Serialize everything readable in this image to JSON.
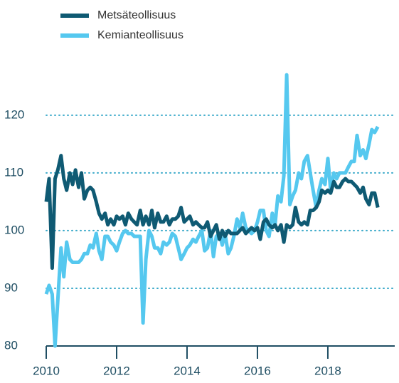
{
  "chart_data": {
    "type": "line",
    "x": [
      2010.0,
      2010.08,
      2010.17,
      2010.25,
      2010.33,
      2010.42,
      2010.5,
      2010.58,
      2010.67,
      2010.75,
      2010.83,
      2010.92,
      2011.0,
      2011.08,
      2011.17,
      2011.25,
      2011.33,
      2011.42,
      2011.5,
      2011.58,
      2011.67,
      2011.75,
      2011.83,
      2011.92,
      2012.0,
      2012.08,
      2012.17,
      2012.25,
      2012.33,
      2012.42,
      2012.5,
      2012.58,
      2012.67,
      2012.75,
      2012.83,
      2012.92,
      2013.0,
      2013.08,
      2013.17,
      2013.25,
      2013.33,
      2013.42,
      2013.5,
      2013.58,
      2013.67,
      2013.75,
      2013.83,
      2013.92,
      2014.0,
      2014.08,
      2014.17,
      2014.25,
      2014.33,
      2014.42,
      2014.5,
      2014.58,
      2014.67,
      2014.75,
      2014.83,
      2014.92,
      2015.0,
      2015.08,
      2015.17,
      2015.25,
      2015.33,
      2015.42,
      2015.5,
      2015.58,
      2015.67,
      2015.75,
      2015.83,
      2015.92,
      2016.0,
      2016.08,
      2016.17,
      2016.25,
      2016.33,
      2016.42,
      2016.5,
      2016.58,
      2016.67,
      2016.75,
      2016.83,
      2016.92,
      2017.0,
      2017.08,
      2017.17,
      2017.25,
      2017.33,
      2017.42,
      2017.5,
      2017.58,
      2017.67,
      2017.75,
      2017.83,
      2017.92,
      2018.0,
      2018.08,
      2018.17,
      2018.25,
      2018.33,
      2018.42,
      2018.5,
      2018.58,
      2018.67,
      2018.75,
      2018.83,
      2018.92,
      2019.0,
      2019.08,
      2019.17,
      2019.25,
      2019.33,
      2019.42
    ],
    "series": [
      {
        "name": "Metsäteollisuus",
        "color": "#0f5a73",
        "values": [
          105,
          109,
          93.5,
          109,
          110.5,
          113,
          109,
          107,
          110,
          108,
          110.5,
          107.5,
          110,
          105.5,
          107,
          107.5,
          107,
          105,
          103,
          102,
          103,
          101,
          102,
          101,
          102.5,
          102,
          102.5,
          101,
          103,
          102,
          101.5,
          101,
          103.5,
          101,
          102.5,
          101,
          103.5,
          100.5,
          103,
          101.5,
          101.5,
          102.5,
          101,
          102,
          102,
          102.5,
          104,
          101.5,
          102,
          102.5,
          101,
          101.5,
          101,
          100.5,
          100.5,
          101.5,
          99,
          100,
          101,
          98.5,
          100,
          99,
          100,
          99.5,
          99.5,
          99.5,
          100,
          100.5,
          99.5,
          100,
          100.5,
          100,
          100.5,
          98.5,
          101.5,
          102,
          101,
          100.5,
          101,
          100,
          101,
          98,
          101,
          100.5,
          101,
          104,
          101.5,
          101,
          101.5,
          101,
          103.5,
          103.5,
          104,
          105,
          107,
          106.5,
          107,
          106.5,
          108.5,
          107.5,
          107.5,
          108.5,
          109,
          108.5,
          108.5,
          108,
          107.5,
          106.5,
          107.5,
          105.5,
          104.5,
          106.5,
          106.5,
          104
        ]
      },
      {
        "name": "Kemianteollisuus",
        "color": "#55c8ef",
        "values": [
          89,
          90.5,
          89,
          80,
          88,
          97,
          92,
          98,
          95,
          94.5,
          94.5,
          94.5,
          95,
          96,
          96,
          97.5,
          97,
          99.5,
          96.5,
          95,
          99,
          99,
          98,
          97.5,
          96.5,
          98,
          99.5,
          100,
          99.5,
          99.5,
          99,
          99,
          99,
          84,
          95,
          100,
          99,
          97,
          97,
          96,
          98,
          97.5,
          98,
          99.5,
          99,
          97,
          95,
          96,
          97,
          97.5,
          98.5,
          98,
          99,
          100,
          96.5,
          97,
          100,
          95.5,
          99,
          99.5,
          97.5,
          99.5,
          96,
          97,
          99,
          102,
          100.5,
          103,
          100.5,
          100,
          99.5,
          100,
          101.5,
          103.5,
          103.5,
          100,
          99,
          103,
          101,
          106,
          105,
          109.5,
          127,
          104.5,
          106,
          107,
          110,
          109,
          112,
          113,
          110,
          107,
          104,
          107,
          109,
          108,
          112.5,
          107,
          110,
          109,
          110,
          110,
          110,
          111,
          112,
          112,
          116.5,
          113,
          114,
          112.5,
          115,
          117.5,
          117,
          118
        ]
      }
    ],
    "xlim": [
      2010,
      2019.9
    ],
    "xticks": [
      2010,
      2012,
      2014,
      2016,
      2018
    ],
    "ylim": [
      80,
      128
    ],
    "yticks": [
      80,
      90,
      100,
      110,
      120
    ],
    "grid": true
  }
}
